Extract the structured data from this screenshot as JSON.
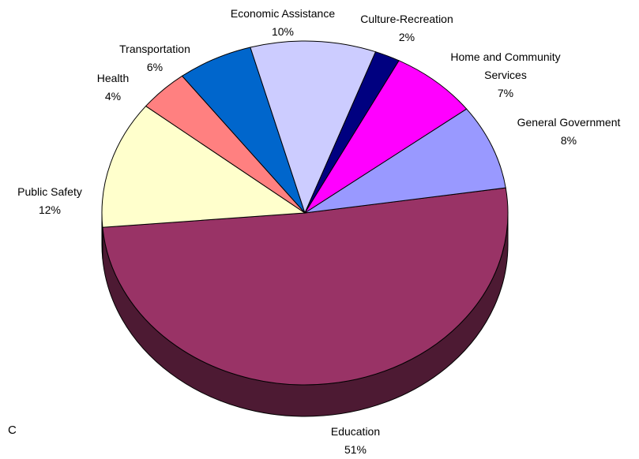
{
  "chart_data": {
    "type": "pie",
    "categories": [
      "Education",
      "Public Safety",
      "Health",
      "Transportation",
      "Economic Assistance",
      "Culture-Recreation",
      "Home and Community Services",
      "General Government"
    ],
    "values": [
      51,
      12,
      4,
      6,
      10,
      2,
      7,
      8
    ],
    "value_labels": [
      "51%",
      "12%",
      "4%",
      "6%",
      "10%",
      "2%",
      "7%",
      "8%"
    ],
    "colors": [
      "#993366",
      "#ffffcc",
      "#ff8080",
      "#0066cc",
      "#ccccff",
      "#000080",
      "#ff00ff",
      "#9999ff"
    ],
    "annotation": "C"
  }
}
